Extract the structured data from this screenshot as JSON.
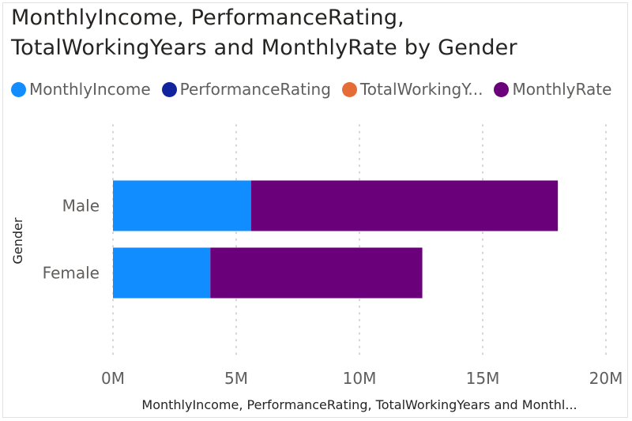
{
  "chart_data": {
    "type": "bar",
    "orientation": "horizontal",
    "stacked": true,
    "title_line1": "MonthlyIncome, PerformanceRating,",
    "title_line2": "TotalWorkingYears and MonthlyRate by Gender",
    "categories": [
      "Male",
      "Female"
    ],
    "series": [
      {
        "name": "MonthlyIncome",
        "color": "#118dff",
        "values": [
          5.6,
          3.95
        ]
      },
      {
        "name": "PerformanceRating",
        "color": "#12239e",
        "values": [
          0,
          0
        ]
      },
      {
        "name": "TotalWorkingY...",
        "color": "#e66c37",
        "values": [
          0,
          0
        ]
      },
      {
        "name": "MonthlyRate",
        "color": "#6b007b",
        "values": [
          12.45,
          8.6
        ]
      }
    ],
    "xlim": [
      0,
      20
    ],
    "x_ticks": [
      0,
      5,
      10,
      15,
      20
    ],
    "x_tick_labels": [
      "0M",
      "5M",
      "10M",
      "15M",
      "20M"
    ],
    "xlabel": "MonthlyIncome, PerformanceRating, TotalWorkingYears and Monthl...",
    "ylabel": "Gender",
    "grid": true,
    "legend_position": "top-left"
  }
}
